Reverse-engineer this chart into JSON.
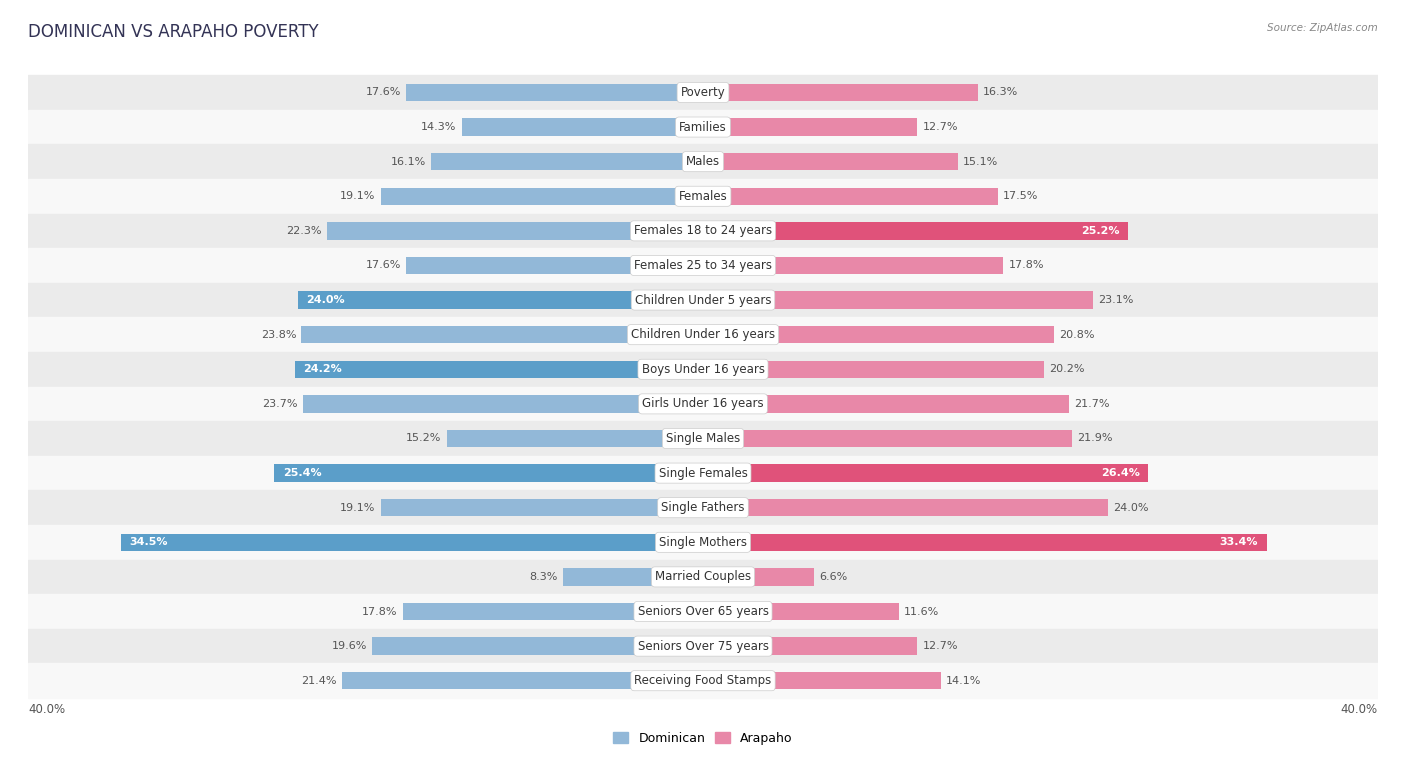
{
  "title": "DOMINICAN VS ARAPAHO POVERTY",
  "source": "Source: ZipAtlas.com",
  "categories": [
    "Poverty",
    "Families",
    "Males",
    "Females",
    "Females 18 to 24 years",
    "Females 25 to 34 years",
    "Children Under 5 years",
    "Children Under 16 years",
    "Boys Under 16 years",
    "Girls Under 16 years",
    "Single Males",
    "Single Females",
    "Single Fathers",
    "Single Mothers",
    "Married Couples",
    "Seniors Over 65 years",
    "Seniors Over 75 years",
    "Receiving Food Stamps"
  ],
  "dominican": [
    17.6,
    14.3,
    16.1,
    19.1,
    22.3,
    17.6,
    24.0,
    23.8,
    24.2,
    23.7,
    15.2,
    25.4,
    19.1,
    34.5,
    8.3,
    17.8,
    19.6,
    21.4
  ],
  "arapaho": [
    16.3,
    12.7,
    15.1,
    17.5,
    25.2,
    17.8,
    23.1,
    20.8,
    20.2,
    21.7,
    21.9,
    26.4,
    24.0,
    33.4,
    6.6,
    11.6,
    12.7,
    14.1
  ],
  "dominican_color": "#92b8d8",
  "arapaho_color": "#e888a8",
  "dominican_highlight_indices": [
    6,
    8,
    11,
    13
  ],
  "arapaho_highlight_indices": [
    4,
    11,
    13
  ],
  "highlight_dominican_color": "#5b9ec9",
  "highlight_arapaho_color": "#e0527a",
  "background_row_odd": "#ebebeb",
  "background_row_even": "#f8f8f8",
  "max_val": 40.0,
  "bar_height": 0.5,
  "title_fontsize": 12,
  "label_fontsize": 8.5,
  "value_fontsize": 8.0,
  "tick_fontsize": 8.5
}
